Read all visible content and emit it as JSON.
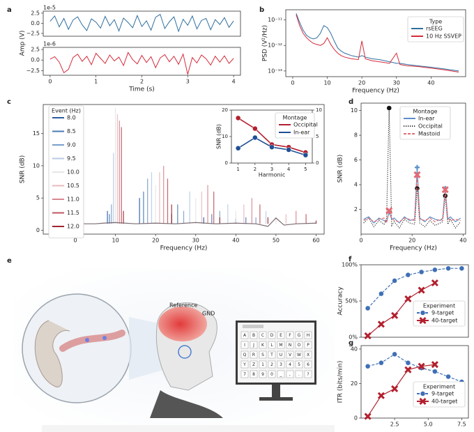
{
  "chart_data": [
    {
      "panel": "a",
      "type": "line",
      "ylabel": "Amp (V)",
      "offset_label": "1e-5",
      "x": [
        0,
        0.1,
        0.2,
        0.3,
        0.4,
        0.5,
        0.6,
        0.7,
        0.8,
        0.9,
        1,
        1.1,
        1.2,
        1.3,
        1.4,
        1.5,
        1.6,
        1.7,
        1.8,
        1.9,
        2,
        2.1,
        2.2,
        2.3,
        2.4,
        2.5,
        2.6,
        2.7,
        2.8,
        2.9,
        3,
        3.1,
        3.2,
        3.3,
        3.4,
        3.5,
        3.6,
        3.7,
        3.8,
        3.9,
        4
      ],
      "series": [
        {
          "color": "#2f6f9f",
          "values": [
            0.5,
            1.8,
            -0.9,
            1.2,
            -1.5,
            0.8,
            1.6,
            -0.4,
            -1.8,
            1.1,
            0.3,
            -1.2,
            1.7,
            -0.6,
            0.9,
            -1.9,
            1.3,
            0.2,
            -1.1,
            1.9,
            -0.8,
            0.6,
            -1.7,
            1.5,
            2.2,
            -1.3,
            0.4,
            1.6,
            -2.0,
            1.0,
            -0.5,
            1.8,
            -1.4,
            0.7,
            1.2,
            -1.6,
            0.9,
            -0.3,
            1.4,
            -1.0,
            0.6
          ]
        }
      ],
      "xlim": [
        -0.15,
        4.15
      ],
      "ylim": [
        -3.2,
        3.0
      ],
      "yticks": [
        2.5,
        {
          "value": 0,
          "label": "0.0"
        },
        {
          "value": -2.5,
          "label": "−2.5"
        }
      ]
    },
    {
      "type": "line",
      "offset_label": "1e-6",
      "xlabel": "Time (s)",
      "x": [
        0,
        0.1,
        0.2,
        0.3,
        0.4,
        0.5,
        0.6,
        0.7,
        0.8,
        0.9,
        1,
        1.1,
        1.2,
        1.3,
        1.4,
        1.5,
        1.6,
        1.7,
        1.8,
        1.9,
        2,
        2.1,
        2.2,
        2.3,
        2.4,
        2.5,
        2.6,
        2.7,
        2.8,
        2.9,
        3,
        3.1,
        3.2,
        3.3,
        3.4,
        3.5,
        3.6,
        3.7,
        3.8,
        3.9,
        4
      ],
      "series": [
        {
          "color": "#d52b3a",
          "values": [
            0.2,
            0.8,
            -0.5,
            -3.0,
            -2.2,
            0.6,
            1.4,
            -0.3,
            0.9,
            -1.1,
            1.6,
            0.4,
            -0.8,
            1.2,
            -0.2,
            0.7,
            -1.3,
            1.8,
            0.1,
            -0.9,
            1.1,
            -0.6,
            0.8,
            -1.8,
            0.5,
            1.3,
            -0.4,
            0.9,
            -1.0,
            1.4,
            -3.4,
            0.6,
            -0.7,
            1.2,
            0.3,
            -1.2,
            0.9,
            -0.5,
            1.0,
            -0.8,
            0.4
          ]
        }
      ],
      "xlim": [
        -0.15,
        4.15
      ],
      "ylim": [
        -3.6,
        3.0
      ],
      "xticks": [
        0,
        1,
        2,
        3,
        4
      ],
      "yticks": [
        2.5,
        {
          "value": 0,
          "label": "0.0"
        },
        {
          "value": -2.5,
          "label": "−2.5"
        }
      ]
    },
    {
      "panel": "b",
      "type": "line",
      "log_y": true,
      "ylabel": "PSD (V²/Hz)",
      "xlabel": "Frequency (Hz)",
      "legend_title": "Type",
      "x": [
        1,
        2,
        3,
        4,
        5,
        6,
        7,
        8,
        9,
        10,
        11,
        12,
        13,
        14,
        15,
        17,
        19,
        20,
        21,
        23,
        25,
        28,
        30,
        31,
        33,
        36,
        40,
        44,
        48
      ],
      "series": [
        {
          "name": "rsEEG",
          "color": "#2f6f9f",
          "values": [
            1.8e-11,
            8e-12,
            4e-12,
            2.5e-12,
            2e-12,
            1.8e-12,
            2e-12,
            3e-12,
            6e-12,
            5e-12,
            3e-12,
            1.5e-12,
            8e-13,
            6e-13,
            5e-13,
            4e-13,
            3.5e-13,
            4e-13,
            3.5e-13,
            3e-13,
            2.8e-13,
            2.3e-13,
            2e-13,
            2e-13,
            1.8e-13,
            1.6e-13,
            1.4e-13,
            1.2e-13,
            1e-13
          ]
        },
        {
          "name": "10 Hz SSVEP",
          "color": "#d52b3a",
          "values": [
            1.6e-11,
            6e-12,
            3e-12,
            2e-12,
            1.5e-12,
            1.2e-12,
            1.1e-12,
            1e-12,
            1.2e-12,
            2e-12,
            1.1e-12,
            7e-13,
            5e-13,
            4e-13,
            3.5e-13,
            3e-13,
            2.8e-13,
            1.5e-12,
            3e-13,
            2.5e-13,
            2.3e-13,
            2e-13,
            5e-13,
            1.8e-13,
            1.6e-13,
            1.5e-13,
            1.3e-13,
            1.1e-13,
            9e-14
          ]
        }
      ],
      "xlim": [
        -2,
        50
      ],
      "ylim": [
        6e-14,
        2.5e-11
      ],
      "xticks": [
        0,
        10,
        20,
        30,
        40
      ],
      "yticks": [
        {
          "value": 1e-11,
          "label": "10⁻¹¹"
        },
        {
          "value": 1e-12,
          "label": "10⁻¹²"
        },
        {
          "value": 1e-13,
          "label": "10⁻¹³"
        }
      ]
    },
    {
      "panel": "c",
      "type": "stem",
      "ylabel": "SNR (dB)",
      "xlabel": "Frequency (Hz)",
      "legend_title": "Event (Hz)",
      "floor_x": [
        2,
        5,
        7,
        10,
        15,
        20,
        25,
        30,
        35,
        40,
        45,
        48,
        50,
        52,
        55,
        60
      ],
      "floor_values": [
        1,
        1,
        1.1,
        1.2,
        1,
        1.1,
        1,
        1.2,
        1,
        1.1,
        1,
        0.6,
        1.9,
        0.8,
        1,
        1.1
      ],
      "floor_color": "#7a6a70",
      "series": [
        {
          "name": "8.0",
          "color": "#2b5c9e",
          "x": [
            8,
            16,
            24,
            32,
            40
          ],
          "values": [
            3,
            5,
            2.5,
            2,
            1.8
          ]
        },
        {
          "name": "8.5",
          "color": "#4a79b4",
          "x": [
            8.5,
            17,
            25.5,
            34,
            42.5
          ],
          "values": [
            2.5,
            6,
            4,
            2.5,
            2
          ]
        },
        {
          "name": "9.0",
          "color": "#7a9fcb",
          "x": [
            9,
            18,
            27,
            36,
            45
          ],
          "values": [
            4,
            8,
            3,
            3,
            2
          ]
        },
        {
          "name": "9.5",
          "color": "#b8cbe3",
          "x": [
            9.5,
            19,
            28.5,
            38,
            47.5
          ],
          "values": [
            12,
            9,
            6,
            4,
            3
          ]
        },
        {
          "name": "10.0",
          "color": "#e6e6e6",
          "x": [
            10,
            20,
            30,
            40,
            50
          ],
          "values": [
            19,
            7,
            5,
            3,
            2
          ]
        },
        {
          "name": "10.5",
          "color": "#e8b8bd",
          "x": [
            10.5,
            21,
            31.5,
            42,
            52.5
          ],
          "values": [
            18,
            9,
            6,
            4,
            2.5
          ]
        },
        {
          "name": "11.0",
          "color": "#d9868f",
          "x": [
            11,
            22,
            33,
            44,
            55
          ],
          "values": [
            17,
            10,
            7,
            5,
            3
          ]
        },
        {
          "name": "11.5",
          "color": "#c05560",
          "x": [
            11.5,
            23,
            34.5,
            46,
            57.5
          ],
          "values": [
            16,
            8,
            6,
            4,
            2.5
          ]
        },
        {
          "name": "12.0",
          "color": "#9e2530",
          "x": [
            12,
            24,
            36,
            48,
            60
          ],
          "values": [
            3,
            4,
            2,
            2,
            1.5
          ]
        }
      ],
      "xlim": [
        -8,
        62
      ],
      "ylim": [
        -0.6,
        19.5
      ],
      "xticks": [
        0,
        10,
        20,
        30,
        40,
        50,
        60
      ],
      "yticks": [
        0,
        5,
        10,
        15
      ]
    },
    {
      "type": "line",
      "inset": true,
      "ylabel": "SNR (dB)",
      "xlabel": "Harmonic",
      "legend_title": "Montage",
      "x": [
        1,
        2,
        3,
        4,
        5
      ],
      "series": [
        {
          "name": "Occipital",
          "color": "#b2202e",
          "values": [
            17,
            13,
            7,
            6,
            4
          ]
        },
        {
          "name": "In-ear",
          "color": "#1f4f94",
          "axis": "y2",
          "values": [
            2.8,
            4.8,
            3,
            2.5,
            1.5
          ]
        }
      ],
      "xlim": [
        0.6,
        5.4
      ],
      "ylim": [
        0,
        20
      ],
      "y2lim": [
        0,
        10
      ],
      "xticks": [
        1,
        2,
        3,
        4,
        5
      ],
      "yticks": [
        0,
        10,
        20
      ],
      "y2ticks": [
        0,
        5,
        10
      ]
    },
    {
      "panel": "d",
      "type": "line",
      "ylabel": "SNR (dB)",
      "xlabel": "Frequency (Hz)",
      "legend_title": "Montage",
      "x": [
        1,
        3,
        5,
        7,
        9,
        10,
        11,
        12,
        13,
        15,
        17,
        19,
        21,
        22,
        23,
        25,
        27,
        29,
        31,
        32,
        33,
        34,
        35,
        37,
        39
      ],
      "marked_x": [
        11,
        22,
        33
      ],
      "series": [
        {
          "name": "In-ear",
          "color": "#5b8fc7",
          "dash": "solid",
          "marker": "plus",
          "values": [
            1.2,
            1.4,
            0.9,
            1.3,
            1.1,
            1.0,
            1.8,
            1.2,
            1.3,
            0.9,
            1.4,
            1.1,
            1.2,
            5.4,
            1.3,
            1.0,
            1.4,
            1.2,
            1.1,
            1.3,
            3.7,
            1.2,
            1.4,
            1.0,
            1.3
          ]
        },
        {
          "name": "Occipital",
          "color": "#333333",
          "dash": "dotted",
          "marker": "circle",
          "values": [
            0.9,
            1.3,
            0.6,
            1.1,
            0.8,
            1.2,
            10.2,
            0.7,
            1.0,
            0.5,
            1.2,
            0.9,
            0.8,
            3.7,
            0.9,
            0.6,
            1.1,
            0.7,
            0.9,
            1.0,
            3.1,
            0.8,
            1.2,
            0.5,
            1.0
          ]
        },
        {
          "name": "Mastoid",
          "color": "#e36b74",
          "dash": "dashed",
          "marker": "cross",
          "values": [
            1.1,
            1.3,
            1.0,
            1.2,
            1.3,
            0.9,
            1.9,
            1.3,
            1.1,
            1.0,
            1.3,
            1.2,
            1.1,
            4.8,
            1.2,
            1.1,
            1.3,
            1.0,
            1.2,
            1.1,
            3.6,
            1.3,
            1.1,
            1.2,
            1.1
          ]
        }
      ],
      "xlim": [
        0,
        41
      ],
      "ylim": [
        0,
        10.6
      ],
      "xticks": [
        0,
        20,
        40
      ],
      "yticks": [
        2,
        4,
        6,
        8,
        10
      ]
    },
    {
      "panel": "f",
      "type": "line",
      "ylabel": "Accuracy",
      "legend_title": "Experiment",
      "x": [
        0.5,
        1.5,
        2.5,
        3.5,
        4.5,
        5.5,
        6.5,
        7.5
      ],
      "series": [
        {
          "name": "9-target",
          "color": "#3f6fb5",
          "dash": "dashed",
          "marker": "circle",
          "values": [
            40,
            60,
            78,
            86,
            90,
            93,
            95,
            95
          ]
        },
        {
          "name": "40-target",
          "color": "#b2202e",
          "dash": "solid",
          "marker": "cross",
          "values": [
            2,
            18,
            30,
            53,
            65,
            75,
            null,
            null
          ]
        }
      ],
      "xlim": [
        0,
        8
      ],
      "ylim": [
        0,
        100
      ],
      "yticks": [
        {
          "value": 0,
          "label": "0%"
        },
        {
          "value": 50,
          "label": "50%"
        },
        {
          "value": 100,
          "label": "100%"
        }
      ]
    },
    {
      "panel": "g",
      "type": "line",
      "ylabel": "ITR (bits/min)",
      "legend_title": "Experiment",
      "x": [
        0.5,
        1.5,
        2.5,
        3.5,
        4.5,
        5.5,
        6.5,
        7.5
      ],
      "series": [
        {
          "name": "9-target",
          "color": "#3f6fb5",
          "dash": "dashed",
          "marker": "circle",
          "values": [
            30,
            32,
            37,
            32,
            29,
            27,
            24,
            21
          ]
        },
        {
          "name": "40-target",
          "color": "#b2202e",
          "dash": "solid",
          "marker": "cross",
          "values": [
            1,
            13,
            17,
            28,
            30,
            31,
            null,
            null
          ]
        }
      ],
      "xlim": [
        0,
        8
      ],
      "ylim": [
        0,
        42
      ],
      "xticks": [
        2.5,
        {
          "value": 5,
          "label": "5.0"
        },
        7.5
      ],
      "yticks": [
        0,
        20,
        40
      ]
    }
  ],
  "illustration": {
    "panel": "e",
    "labels": [
      "Reference",
      "GND"
    ],
    "keys": [
      "A",
      "B",
      "C",
      "D",
      "E",
      "F",
      "G",
      "H",
      "I",
      "J",
      "K",
      "L",
      "M",
      "N",
      "O",
      "P",
      "Q",
      "R",
      "S",
      "T",
      "U",
      "V",
      "W",
      "X",
      "Y",
      "Z",
      "1",
      "2",
      "3",
      "4",
      "5",
      "6",
      "7",
      "8",
      "9",
      "0",
      "_",
      ",",
      ".",
      "?"
    ]
  }
}
